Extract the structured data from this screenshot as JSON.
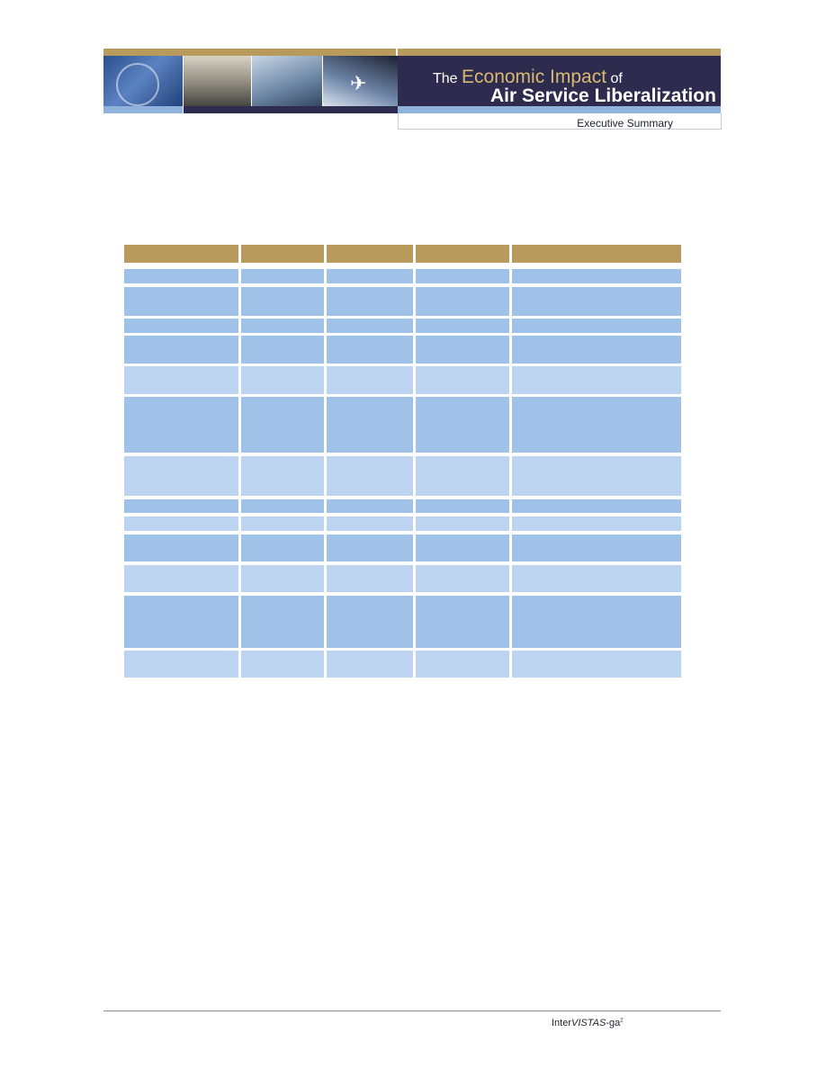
{
  "banner": {
    "title_prefix": "The ",
    "title_accent": "Economic Impact",
    "title_suffix": " of",
    "title_line2": "Air Service Liberalization",
    "subtitle": "Executive Summary"
  },
  "table": {
    "header_color": "#b89a5c",
    "row_colors": [
      "#a0c1e8",
      "#bcd4ef"
    ]
  },
  "footer": {
    "brand_prefix": "Inter",
    "brand_italic": "VISTAS",
    "brand_suffix": "-ga",
    "brand_sup": "2"
  }
}
